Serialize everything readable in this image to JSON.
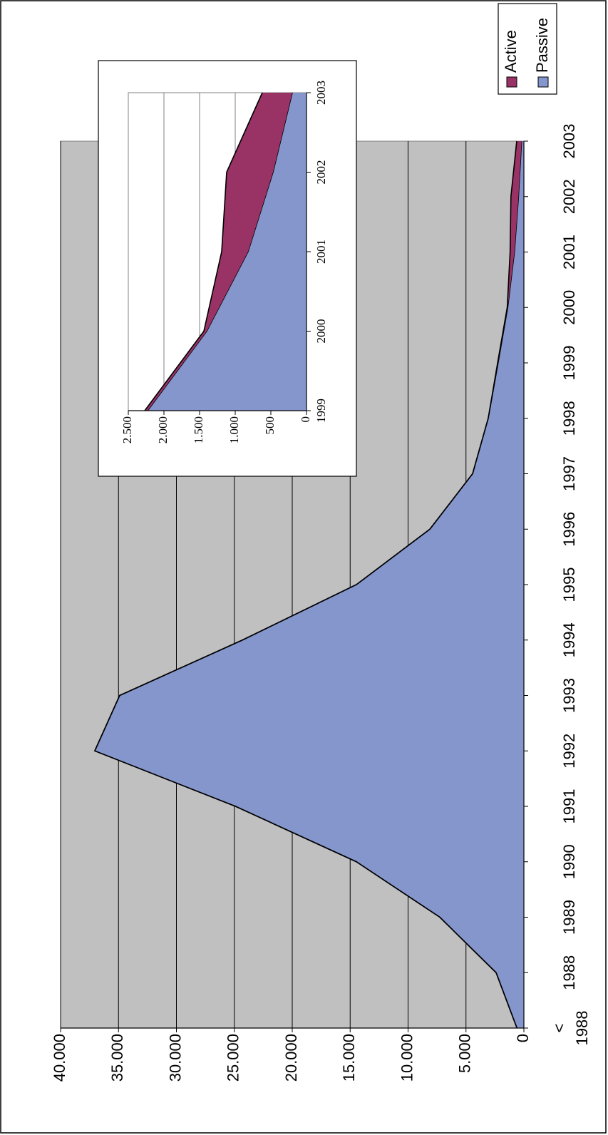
{
  "chart_data": [
    {
      "type": "area",
      "stacked": true,
      "categories": [
        "< 1988",
        "1988",
        "1989",
        "1990",
        "1991",
        "1992",
        "1993",
        "1994",
        "1995",
        "1996",
        "1997",
        "1998",
        "1999",
        "2000",
        "2001",
        "2002",
        "2003"
      ],
      "series": [
        {
          "name": "Passive",
          "color": "#8596cc",
          "values": [
            600,
            2400,
            7260,
            14460,
            24900,
            37050,
            34900,
            24300,
            14460,
            8120,
            4430,
            3080,
            2230,
            1400,
            820,
            470,
            200
          ]
        },
        {
          "name": "Active",
          "color": "#993366",
          "values": [
            0,
            0,
            0,
            0,
            0,
            0,
            0,
            0,
            0,
            0,
            0,
            0,
            40,
            40,
            370,
            650,
            420
          ]
        }
      ],
      "ylim": [
        0,
        40000
      ],
      "yticks": [
        0,
        {
          "value": 5000,
          "label": "5.000"
        },
        {
          "value": 10000,
          "label": "10.000"
        },
        {
          "value": 15000,
          "label": "15.000"
        },
        {
          "value": 20000,
          "label": "20.000"
        },
        {
          "value": 25000,
          "label": "25.000"
        },
        {
          "value": 30000,
          "label": "30.000"
        },
        {
          "value": 35000,
          "label": "35.000"
        },
        {
          "value": 40000,
          "label": "40.000"
        }
      ],
      "grid": true,
      "background": "#c0c0c0",
      "legend": "right"
    },
    {
      "type": "area",
      "stacked": true,
      "categories": [
        "1999",
        "2000",
        "2001",
        "2002",
        "2003"
      ],
      "series": [
        {
          "name": "Passive",
          "color": "#8596cc",
          "values": [
            2230,
            1400,
            820,
            470,
            200
          ]
        },
        {
          "name": "Active",
          "color": "#993366",
          "values": [
            40,
            40,
            370,
            650,
            420
          ]
        }
      ],
      "ylim": [
        0,
        2500
      ],
      "yticks": [
        0,
        500,
        {
          "value": 1000,
          "label": "1.000"
        },
        {
          "value": 1500,
          "label": "1.500"
        },
        {
          "value": 2000,
          "label": "2.000"
        },
        {
          "value": 2500,
          "label": "2.500"
        }
      ],
      "grid": true,
      "background": "#ffffff"
    }
  ]
}
